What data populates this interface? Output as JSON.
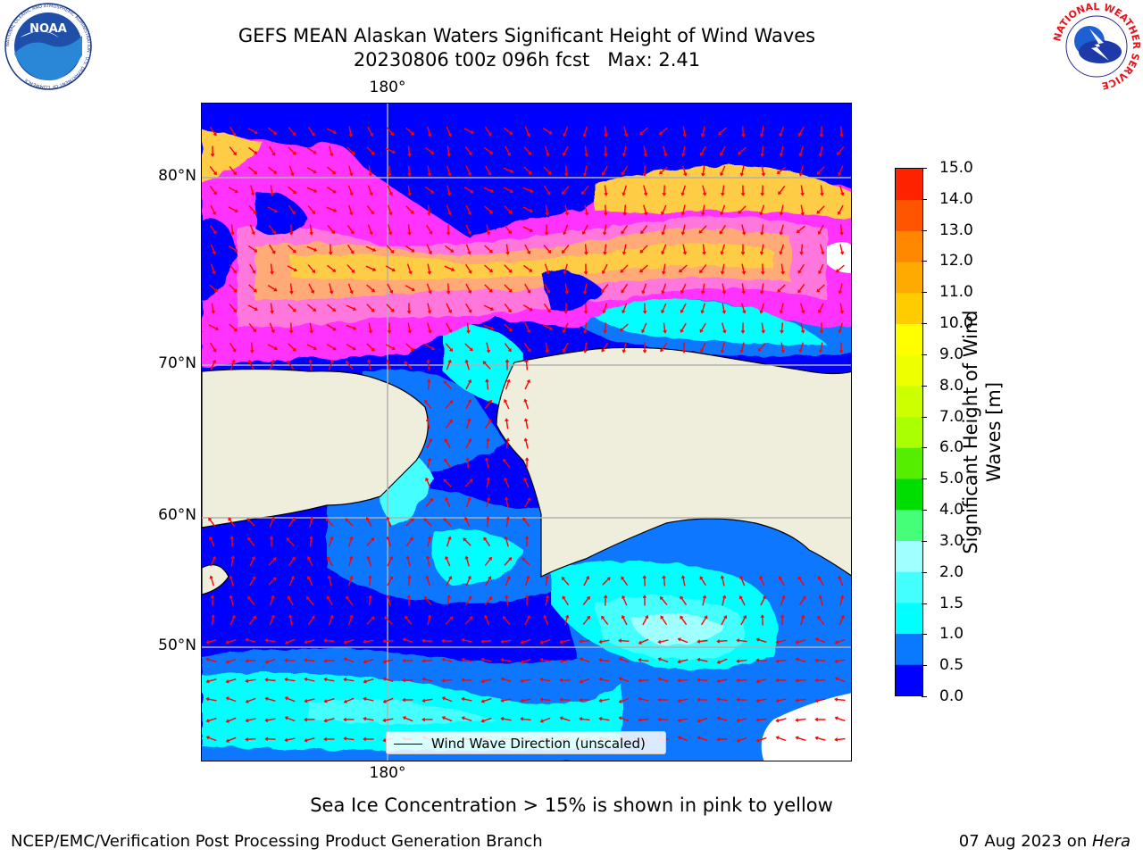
{
  "header": {
    "title_line1": "GEFS MEAN Alaskan Waters Significant Height of Wind Waves",
    "title_line2": "20230806 t00z 096h fcst   Max: 2.41"
  },
  "logos": {
    "noaa": {
      "text": "NOAA",
      "ring_text": "NATIONAL OCEANIC AND ATMOSPHERIC ADMINISTRATION · U.S. DEPARTMENT OF COMMERCE"
    },
    "nws": {
      "ring_text": "NATIONAL WEATHER SERVICE"
    }
  },
  "map": {
    "lat_labels": [
      "80°N",
      "70°N",
      "60°N",
      "50°N"
    ],
    "lon_label_top": "180°",
    "lon_label_bottom": "180°",
    "legend_label": "Wind Wave Direction (unscaled)",
    "arrow_color": "#ff0000",
    "land_color": "#efeedc",
    "ice_colors": [
      "#ff33ff",
      "#ff77dd",
      "#ffaa77",
      "#ffcc44"
    ]
  },
  "colorbar": {
    "title": "Significant Height of Wind Waves [m]",
    "ticks": [
      "0.0",
      "0.5",
      "1.0",
      "1.5",
      "2.0",
      "3.0",
      "4.0",
      "5.0",
      "6.0",
      "7.0",
      "8.0",
      "9.0",
      "10.0",
      "11.0",
      "12.0",
      "13.0",
      "14.0",
      "15.0"
    ],
    "colors": [
      "#0000ff",
      "#0a78ff",
      "#00ffff",
      "#44ffff",
      "#a0ffff",
      "#44ff77",
      "#00dd00",
      "#55ee00",
      "#aaff00",
      "#ccff00",
      "#eeff00",
      "#ffff00",
      "#ffcc00",
      "#ffaa00",
      "#ff8800",
      "#ff5500",
      "#ff2200"
    ]
  },
  "footer": {
    "note": "Sea Ice Concentration > 15% is shown in pink to yellow",
    "credit": "NCEP/EMC/Verification Post Processing Product Generation Branch",
    "date": "07 Aug 2023 on ",
    "host": "Hera"
  }
}
